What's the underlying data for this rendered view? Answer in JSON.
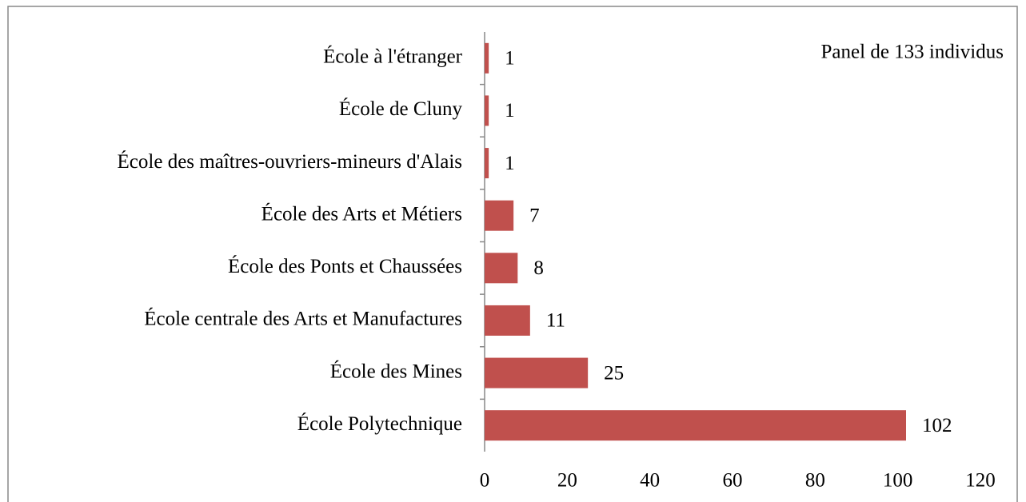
{
  "chart_data": {
    "type": "barh",
    "annotation": "Panel de 133 individus",
    "categories": [
      "École à l'étranger",
      "École de Cluny",
      "École des maîtres-ouvriers-mineurs d'Alais",
      "École des Arts et Métiers",
      "École des Ponts et Chaussées",
      "École centrale des Arts et Manufactures",
      "École des Mines",
      "École Polytechnique"
    ],
    "values": [
      1,
      1,
      1,
      7,
      8,
      11,
      25,
      102
    ],
    "color": "#c0504d",
    "xlim": [
      0,
      120
    ],
    "xticks": [
      0,
      20,
      40,
      60,
      80,
      100,
      120
    ],
    "grid": false
  }
}
